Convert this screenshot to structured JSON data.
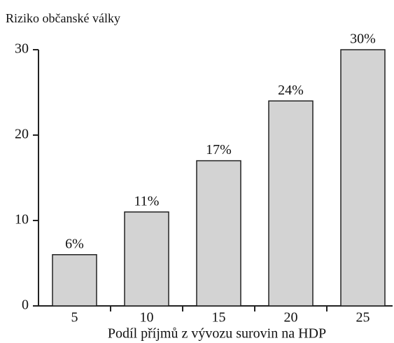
{
  "chart_data": {
    "type": "bar",
    "title": "Riziko občanské války",
    "x_label": "Podíl příjmů z vývozu surovin na HDP",
    "categories": [
      "5",
      "10",
      "15",
      "20",
      "25"
    ],
    "values": [
      6,
      11,
      17,
      24,
      30
    ],
    "value_labels": [
      "6%",
      "11%",
      "17%",
      "24%",
      "30%"
    ],
    "color": "#d3d3d3",
    "ylim": [
      0,
      30
    ],
    "yticks": [
      0,
      10,
      20,
      30
    ],
    "grid": false
  }
}
